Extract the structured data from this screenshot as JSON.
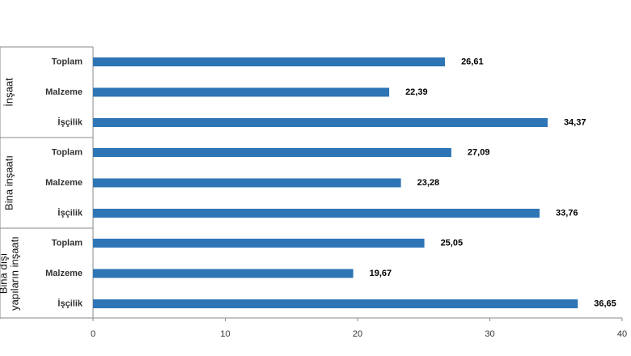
{
  "chart_data": {
    "type": "bar",
    "orientation": "horizontal",
    "groups": [
      {
        "name": "İnşaat",
        "label_lines": [
          "İnşaat"
        ],
        "categories": [
          "Toplam",
          "Malzeme",
          "İşçilik"
        ],
        "values": [
          26.61,
          22.39,
          34.37
        ],
        "value_labels": [
          "26,61",
          "22,39",
          "34,37"
        ]
      },
      {
        "name": "Bina inşaatı",
        "label_lines": [
          "Bina inşaatı"
        ],
        "categories": [
          "Toplam",
          "Malzeme",
          "İşçilik"
        ],
        "values": [
          27.09,
          23.28,
          33.76
        ],
        "value_labels": [
          "27,09",
          "23,28",
          "33,76"
        ]
      },
      {
        "name": "Bina dışı yapıların inşaatı",
        "label_lines": [
          "Bina dışı",
          "yapıların inşaatı"
        ],
        "categories": [
          "Toplam",
          "Malzeme",
          "İşçilik"
        ],
        "values": [
          25.05,
          19.67,
          36.65
        ],
        "value_labels": [
          "25,05",
          "19,67",
          "36,65"
        ]
      }
    ],
    "x_ticks": [
      "0",
      "10",
      "20",
      "30",
      "40"
    ],
    "xlim": [
      0,
      40
    ],
    "bar_color": "#2e75b6",
    "grid": false,
    "legend": "none"
  }
}
